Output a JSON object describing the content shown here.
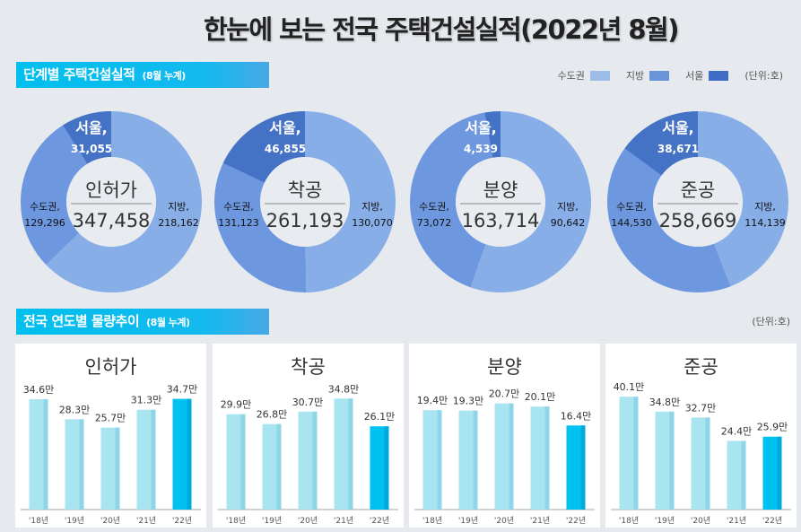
{
  "title": "한눈에 보는 전국 주택건설실적(2022년 8월)",
  "section1": {
    "label": "단계별 주택건설실적",
    "sub": "(8월 누계)"
  },
  "legend": {
    "items": [
      {
        "label": "수도권",
        "color": "#9dbde9"
      },
      {
        "label": "지방",
        "color": "#6a94d8"
      },
      {
        "label": "서울",
        "color": "#3f6cc4"
      }
    ],
    "unit": "(단위:호)"
  },
  "section2": {
    "label": "전국 연도별 물량추이",
    "sub": "(8월 누계)",
    "unit": "(단위:호)"
  },
  "chart_data": [
    {
      "type": "pie",
      "donut": true,
      "title": "인허가",
      "total": "347,458",
      "slices": [
        {
          "name": "지방",
          "value": 218162,
          "label": "지방,",
          "value_label": "218,162",
          "color": "#88aee8"
        },
        {
          "name": "수도권",
          "value": 129296,
          "label": "수도권,",
          "value_label": "129,296",
          "color": "#6d98df"
        }
      ],
      "subset": {
        "name": "서울",
        "value": 31055,
        "label": "서울,",
        "value_label": "31,055",
        "color": "#4472c4"
      }
    },
    {
      "type": "pie",
      "donut": true,
      "title": "착공",
      "total": "261,193",
      "slices": [
        {
          "name": "지방",
          "value": 130070,
          "label": "지방,",
          "value_label": "130,070",
          "color": "#88aee8"
        },
        {
          "name": "수도권",
          "value": 131123,
          "label": "수도권,",
          "value_label": "131,123",
          "color": "#6d98df"
        }
      ],
      "subset": {
        "name": "서울",
        "value": 46855,
        "label": "서울,",
        "value_label": "46,855",
        "color": "#4472c4"
      }
    },
    {
      "type": "pie",
      "donut": true,
      "title": "분양",
      "total": "163,714",
      "slices": [
        {
          "name": "지방",
          "value": 90642,
          "label": "지방,",
          "value_label": "90,642",
          "color": "#88aee8"
        },
        {
          "name": "수도권",
          "value": 73072,
          "label": "수도권,",
          "value_label": "73,072",
          "color": "#6d98df"
        }
      ],
      "subset": {
        "name": "서울",
        "value": 4539,
        "label": "서울,",
        "value_label": "4,539",
        "color": "#4472c4"
      }
    },
    {
      "type": "pie",
      "donut": true,
      "title": "준공",
      "total": "258,669",
      "slices": [
        {
          "name": "지방",
          "value": 114139,
          "label": "지방,",
          "value_label": "114,139",
          "color": "#88aee8"
        },
        {
          "name": "수도권",
          "value": 144530,
          "label": "수도권,",
          "value_label": "144,530",
          "color": "#6d98df"
        }
      ],
      "subset": {
        "name": "서울",
        "value": 38671,
        "label": "서울,",
        "value_label": "38,671",
        "color": "#4472c4"
      }
    },
    {
      "type": "bar",
      "title": "인허가",
      "categories": [
        "'18년",
        "'19년",
        "'20년",
        "'21년",
        "'22년"
      ],
      "values": [
        34.6,
        28.3,
        25.7,
        31.3,
        34.7
      ],
      "value_labels": [
        "34.6만",
        "28.3만",
        "25.7만",
        "31.3만",
        "34.7만"
      ],
      "ylim": [
        0,
        45
      ],
      "highlight_index": 4
    },
    {
      "type": "bar",
      "title": "착공",
      "categories": [
        "'18년",
        "'19년",
        "'20년",
        "'21년",
        "'22년"
      ],
      "values": [
        29.9,
        26.8,
        30.7,
        34.8,
        26.1
      ],
      "value_labels": [
        "29.9만",
        "26.8만",
        "30.7만",
        "34.8만",
        "26.1만"
      ],
      "ylim": [
        0,
        45
      ],
      "highlight_index": 4
    },
    {
      "type": "bar",
      "title": "분양",
      "categories": [
        "'18년",
        "'19년",
        "'20년",
        "'21년",
        "'22년"
      ],
      "values": [
        19.4,
        19.3,
        20.7,
        20.1,
        16.4
      ],
      "value_labels": [
        "19.4만",
        "19.3만",
        "20.7만",
        "20.1만",
        "16.4만"
      ],
      "ylim": [
        0,
        28
      ],
      "highlight_index": 4
    },
    {
      "type": "bar",
      "title": "준공",
      "categories": [
        "'18년",
        "'19년",
        "'20년",
        "'21년",
        "'22년"
      ],
      "values": [
        40.1,
        34.8,
        32.7,
        24.4,
        25.9
      ],
      "value_labels": [
        "40.1만",
        "34.8만",
        "32.7만",
        "24.4만",
        "25.9만"
      ],
      "ylim": [
        0,
        51
      ],
      "highlight_index": 4
    }
  ],
  "bar_colors": {
    "normal": "#a9e4f1",
    "normal_edge": "#8dd5e7",
    "highlight": "#00c2f0",
    "highlight_edge": "#00aadf"
  }
}
